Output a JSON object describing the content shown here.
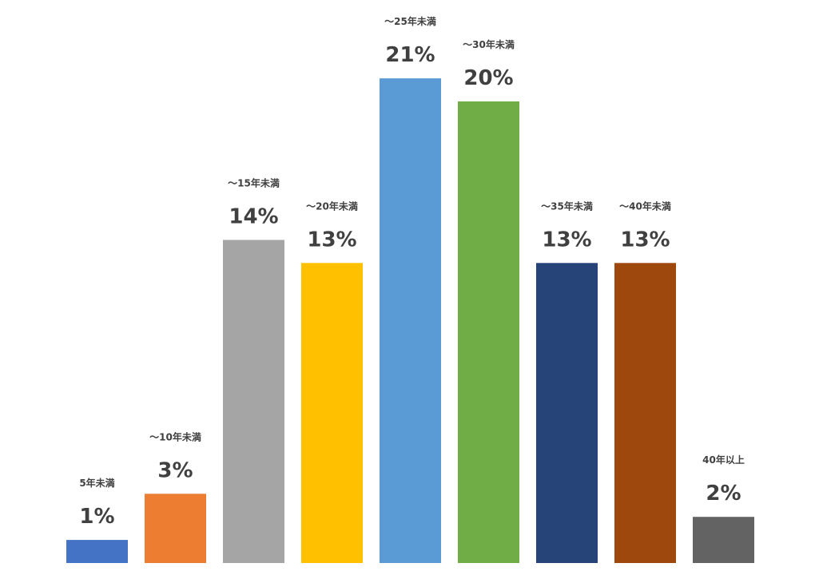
{
  "chart_data": {
    "type": "bar",
    "categories": [
      "5年未満",
      "～10年未満",
      "～15年未満",
      "～20年未満",
      "～25年未満",
      "～30年未満",
      "～35年未満",
      "～40年未満",
      "40年以上"
    ],
    "values": [
      1,
      3,
      14,
      13,
      21,
      20,
      13,
      13,
      2
    ],
    "value_labels": [
      "1%",
      "3%",
      "14%",
      "13%",
      "21%",
      "20%",
      "13%",
      "13%",
      "2%"
    ],
    "colors": [
      "#4472C4",
      "#ED7D31",
      "#A5A5A5",
      "#FFC000",
      "#5B9BD5",
      "#70AD47",
      "#264478",
      "#9E480E",
      "#636363"
    ],
    "unit": "%",
    "title": "",
    "xlabel": "",
    "ylabel": "",
    "grid": false,
    "axes_visible": false
  }
}
